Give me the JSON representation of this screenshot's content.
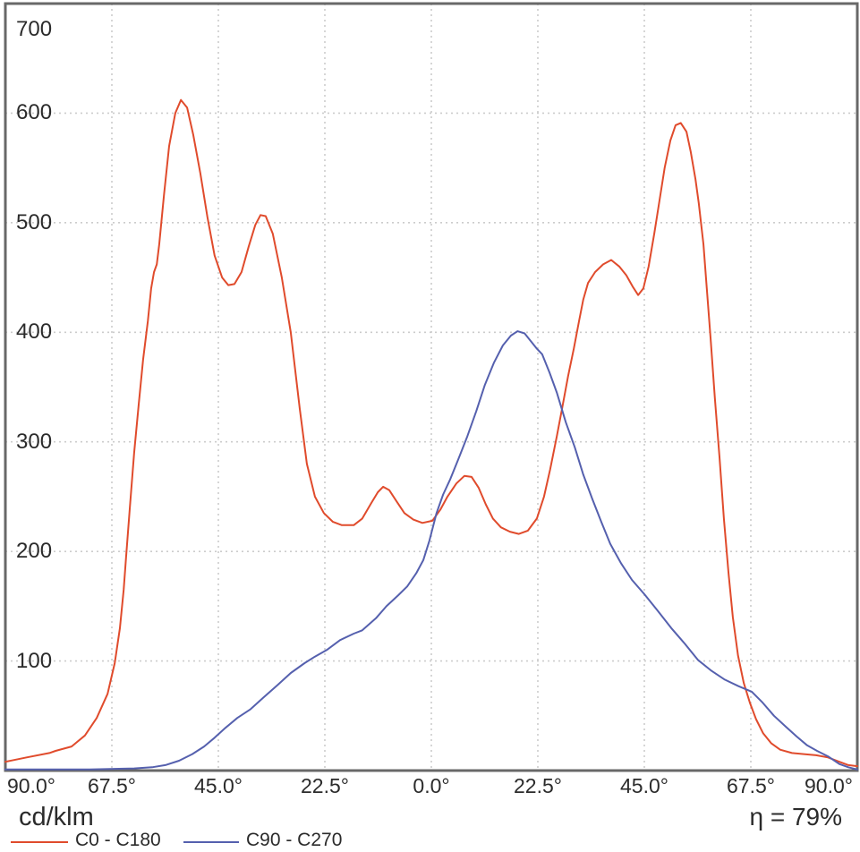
{
  "footer": {
    "unit_label": "cd/klm",
    "efficiency_label": "η = 79%",
    "efficiency_percent": 79
  },
  "colors": {
    "curve_c0_c180": "#e04b2c",
    "curve_c90_c270": "#5560ae",
    "grid": "#cccccc",
    "axis_border": "#686868",
    "text": "#2b2b2b"
  },
  "chart_data": {
    "type": "line",
    "title": "",
    "xlabel": "",
    "ylabel": "cd/klm",
    "grid": true,
    "legend_position": "bottom",
    "x_axis": {
      "tick_degrees": [
        -90,
        -67.5,
        -45,
        -22.5,
        0,
        22.5,
        45,
        67.5,
        90
      ],
      "tick_labels": [
        "90.0°",
        "67.5°",
        "45.0°",
        "22.5°",
        "0.0°",
        "22.5°",
        "45.0°",
        "67.5°",
        "90.0°"
      ]
    },
    "y_axis": {
      "min": 0,
      "max": 700,
      "tick_values": [
        700,
        600,
        500,
        400,
        300,
        200,
        100
      ],
      "tick_labels": [
        "700",
        "600",
        "500",
        "400",
        "300",
        "200",
        "100"
      ]
    },
    "series": [
      {
        "name": "C0 - C180",
        "color": "#e04b2c",
        "points": [
          [
            -90,
            8
          ],
          [
            -85.5,
            12
          ],
          [
            -80.7,
            16
          ],
          [
            -79.4,
            18
          ],
          [
            -76,
            22
          ],
          [
            -73.2,
            32
          ],
          [
            -70.7,
            48
          ],
          [
            -68.4,
            70
          ],
          [
            -66.9,
            98
          ],
          [
            -65.8,
            130
          ],
          [
            -65,
            165
          ],
          [
            -64.5,
            195
          ],
          [
            -63.7,
            240
          ],
          [
            -62.8,
            290
          ],
          [
            -61.8,
            335
          ],
          [
            -60.9,
            375
          ],
          [
            -59.9,
            410
          ],
          [
            -59.2,
            440
          ],
          [
            -58.6,
            455
          ],
          [
            -58,
            462
          ],
          [
            -57.5,
            480
          ],
          [
            -56.5,
            525
          ],
          [
            -55.4,
            570
          ],
          [
            -54.1,
            600
          ],
          [
            -52.9,
            612
          ],
          [
            -51.6,
            605
          ],
          [
            -50.3,
            580
          ],
          [
            -48.8,
            545
          ],
          [
            -47.3,
            505
          ],
          [
            -45.8,
            470
          ],
          [
            -44.2,
            450
          ],
          [
            -42.9,
            443
          ],
          [
            -41.6,
            444
          ],
          [
            -40.1,
            455
          ],
          [
            -38.6,
            478
          ],
          [
            -37.2,
            498
          ],
          [
            -36.1,
            507
          ],
          [
            -35,
            506
          ],
          [
            -33.5,
            490
          ],
          [
            -31.6,
            450
          ],
          [
            -29.7,
            400
          ],
          [
            -27.8,
            330
          ],
          [
            -26.3,
            280
          ],
          [
            -24.6,
            250
          ],
          [
            -22.7,
            235
          ],
          [
            -20.8,
            227
          ],
          [
            -18.9,
            224
          ],
          [
            -16.4,
            224
          ],
          [
            -14.6,
            230
          ],
          [
            -12.7,
            244
          ],
          [
            -11.3,
            254
          ],
          [
            -10.2,
            259
          ],
          [
            -8.9,
            256
          ],
          [
            -7.4,
            246
          ],
          [
            -5.7,
            235
          ],
          [
            -3.8,
            229
          ],
          [
            -1.9,
            226
          ],
          [
            0.2,
            228
          ],
          [
            1.9,
            238
          ],
          [
            3.4,
            250
          ],
          [
            5.3,
            262
          ],
          [
            7,
            269
          ],
          [
            8.5,
            268
          ],
          [
            10,
            258
          ],
          [
            11.5,
            243
          ],
          [
            13,
            230
          ],
          [
            14.7,
            222
          ],
          [
            16.6,
            218
          ],
          [
            18.5,
            216
          ],
          [
            20.4,
            219
          ],
          [
            22.3,
            230
          ],
          [
            23.8,
            250
          ],
          [
            25.1,
            275
          ],
          [
            26.5,
            305
          ],
          [
            27.6,
            330
          ],
          [
            28.9,
            360
          ],
          [
            30.1,
            385
          ],
          [
            31.2,
            410
          ],
          [
            32.1,
            430
          ],
          [
            33.1,
            445
          ],
          [
            34.6,
            455
          ],
          [
            36.3,
            462
          ],
          [
            38,
            466
          ],
          [
            39.7,
            460
          ],
          [
            41.2,
            452
          ],
          [
            42.5,
            442
          ],
          [
            43.7,
            434
          ],
          [
            44.8,
            440
          ],
          [
            45.9,
            460
          ],
          [
            47.1,
            490
          ],
          [
            48.2,
            520
          ],
          [
            49.3,
            550
          ],
          [
            50.5,
            575
          ],
          [
            51.6,
            589
          ],
          [
            52.7,
            591
          ],
          [
            53.9,
            583
          ],
          [
            54.8,
            565
          ],
          [
            55.8,
            540
          ],
          [
            56.5,
            518
          ],
          [
            57.5,
            480
          ],
          [
            58.2,
            440
          ],
          [
            59,
            395
          ],
          [
            59.9,
            340
          ],
          [
            60.9,
            285
          ],
          [
            61.8,
            230
          ],
          [
            62.8,
            180
          ],
          [
            63.7,
            140
          ],
          [
            64.8,
            105
          ],
          [
            66,
            80
          ],
          [
            67.3,
            62
          ],
          [
            68.6,
            47
          ],
          [
            70.1,
            34
          ],
          [
            71.8,
            25
          ],
          [
            73.7,
            19
          ],
          [
            76.2,
            16
          ],
          [
            78.7,
            15
          ],
          [
            81.3,
            14
          ],
          [
            83.8,
            12
          ],
          [
            86.2,
            8
          ],
          [
            88.1,
            5
          ],
          [
            90,
            4
          ]
        ]
      },
      {
        "name": "C90 - C270",
        "color": "#5560ae",
        "points": [
          [
            -90,
            1
          ],
          [
            -72.2,
            1
          ],
          [
            -62.8,
            2
          ],
          [
            -59,
            3
          ],
          [
            -56.2,
            5
          ],
          [
            -53.3,
            9
          ],
          [
            -50.5,
            15
          ],
          [
            -48,
            22
          ],
          [
            -45.8,
            30
          ],
          [
            -43.5,
            39
          ],
          [
            -41,
            48
          ],
          [
            -38.2,
            56
          ],
          [
            -35.4,
            67
          ],
          [
            -32.5,
            78
          ],
          [
            -29.7,
            89
          ],
          [
            -26.8,
            98
          ],
          [
            -24.6,
            104
          ],
          [
            -22.1,
            110
          ],
          [
            -19.3,
            119
          ],
          [
            -16.4,
            125
          ],
          [
            -14.6,
            128
          ],
          [
            -11.7,
            139
          ],
          [
            -9.5,
            150
          ],
          [
            -7,
            160
          ],
          [
            -5.1,
            168
          ],
          [
            -3.2,
            180
          ],
          [
            -1.7,
            192
          ],
          [
            -0.4,
            210
          ],
          [
            1.1,
            235
          ],
          [
            2.5,
            252
          ],
          [
            4,
            266
          ],
          [
            5.7,
            284
          ],
          [
            7.6,
            305
          ],
          [
            9.5,
            328
          ],
          [
            11.3,
            352
          ],
          [
            13.2,
            372
          ],
          [
            15.1,
            388
          ],
          [
            16.8,
            397
          ],
          [
            18.2,
            401
          ],
          [
            19.7,
            399
          ],
          [
            21,
            392
          ],
          [
            22.3,
            385
          ],
          [
            23.4,
            380
          ],
          [
            25,
            363
          ],
          [
            26.5,
            345
          ],
          [
            28.4,
            318
          ],
          [
            30.3,
            295
          ],
          [
            32.1,
            270
          ],
          [
            34,
            248
          ],
          [
            35.9,
            227
          ],
          [
            37.8,
            207
          ],
          [
            40.1,
            189
          ],
          [
            42.4,
            174
          ],
          [
            45,
            161
          ],
          [
            47.8,
            146
          ],
          [
            50.7,
            130
          ],
          [
            53.5,
            116
          ],
          [
            56.3,
            101
          ],
          [
            59.2,
            91
          ],
          [
            62,
            83
          ],
          [
            64.9,
            77
          ],
          [
            67.7,
            72
          ],
          [
            70,
            62
          ],
          [
            72.4,
            50
          ],
          [
            74.9,
            40
          ],
          [
            77.2,
            31
          ],
          [
            79.4,
            23
          ],
          [
            81.5,
            18
          ],
          [
            83.8,
            13
          ],
          [
            86.2,
            6
          ],
          [
            88.1,
            3
          ],
          [
            90,
            1
          ]
        ]
      }
    ]
  }
}
